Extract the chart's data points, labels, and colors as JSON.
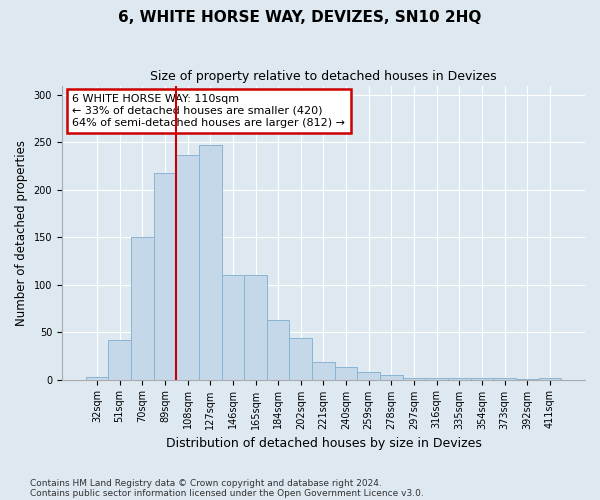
{
  "title": "6, WHITE HORSE WAY, DEVIZES, SN10 2HQ",
  "subtitle": "Size of property relative to detached houses in Devizes",
  "xlabel": "Distribution of detached houses by size in Devizes",
  "ylabel": "Number of detached properties",
  "footnote1": "Contains HM Land Registry data © Crown copyright and database right 2024.",
  "footnote2": "Contains public sector information licensed under the Open Government Licence v3.0.",
  "categories": [
    "32sqm",
    "51sqm",
    "70sqm",
    "89sqm",
    "108sqm",
    "127sqm",
    "146sqm",
    "165sqm",
    "184sqm",
    "202sqm",
    "221sqm",
    "240sqm",
    "259sqm",
    "278sqm",
    "297sqm",
    "316sqm",
    "335sqm",
    "354sqm",
    "373sqm",
    "392sqm",
    "411sqm"
  ],
  "values": [
    3,
    42,
    150,
    218,
    237,
    247,
    110,
    110,
    63,
    44,
    19,
    13,
    8,
    5,
    2,
    2,
    2,
    2,
    2,
    1,
    2
  ],
  "bar_color": "#c5d8ea",
  "bar_edge_color": "#8ab4d4",
  "background_color": "#dde8f0",
  "plot_bg_color": "#dde8f0",
  "grid_color": "#ffffff",
  "vline_x": 4,
  "vline_color": "#cc0000",
  "annotation_title": "6 WHITE HORSE WAY: 110sqm",
  "annotation_line1": "← 33% of detached houses are smaller (420)",
  "annotation_line2": "64% of semi-detached houses are larger (812) →",
  "annotation_box_facecolor": "#ffffff",
  "annotation_box_edgecolor": "#cc0000",
  "ylim": [
    0,
    310
  ],
  "yticks": [
    0,
    50,
    100,
    150,
    200,
    250,
    300
  ],
  "title_fontsize": 11,
  "subtitle_fontsize": 9,
  "ylabel_fontsize": 8.5,
  "xlabel_fontsize": 9,
  "tick_fontsize": 7,
  "annotation_fontsize": 8,
  "footnote_fontsize": 6.5
}
